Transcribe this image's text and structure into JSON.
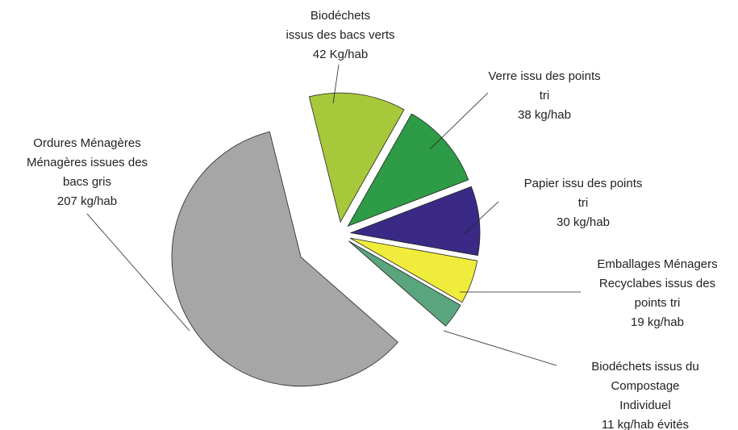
{
  "chart_data": {
    "type": "pie",
    "categories": [
      [
        "Biodéchets",
        "issus des bacs verts"
      ],
      [
        "Verre issu des points",
        "tri"
      ],
      [
        "Papier issu des points",
        "tri"
      ],
      [
        "Emballages Ménagers",
        "Recyclabes issus des",
        "points tri"
      ],
      [
        "Biodéchets issus du",
        "Compostage",
        "Individuel"
      ],
      [
        "Ordures Ménagères",
        "Ménagères issues des",
        "bacs  gris"
      ]
    ],
    "values": [
      42,
      38,
      30,
      19,
      11,
      207
    ],
    "value_labels": [
      "42 Kg/hab",
      "38 kg/hab",
      "30 kg/hab",
      "19 kg/hab",
      "11 kg/hab évités",
      "207 kg/hab"
    ],
    "colors": [
      "#a8c83c",
      "#2e9b46",
      "#3a2a85",
      "#f0ec3c",
      "#5aa57e",
      "#a6a6a6"
    ]
  }
}
